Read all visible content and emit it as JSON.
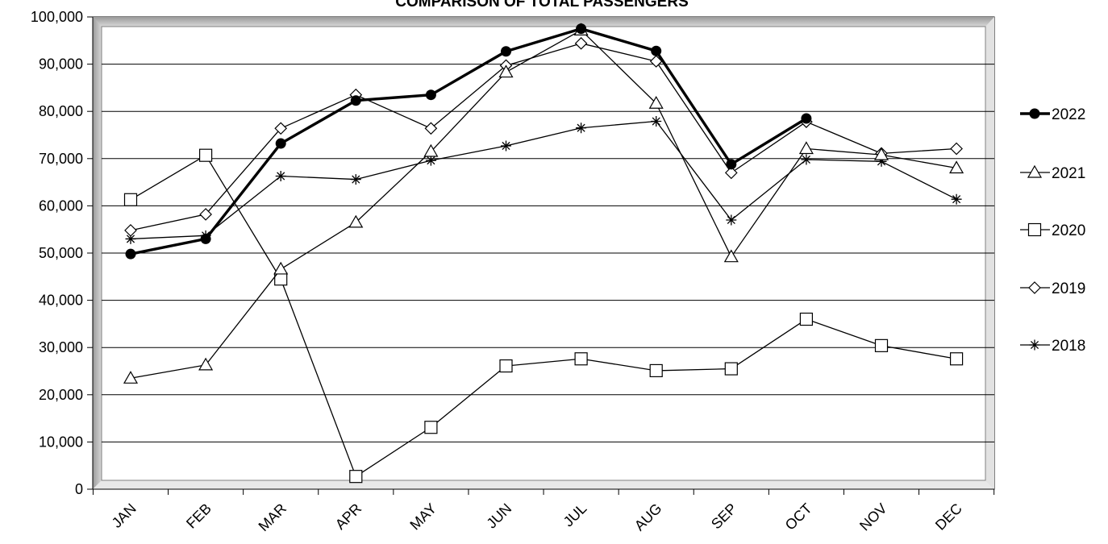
{
  "chart_data": {
    "type": "line",
    "title": "COMPARISON OF TOTAL PASSENGERS",
    "xlabel": "",
    "ylabel": "",
    "categories": [
      "JAN",
      "FEB",
      "MAR",
      "APR",
      "MAY",
      "JUN",
      "JUL",
      "AUG",
      "SEP",
      "OCT",
      "NOV",
      "DEC"
    ],
    "ylim": [
      0,
      100000
    ],
    "yticks": [
      0,
      10000,
      20000,
      30000,
      40000,
      50000,
      60000,
      70000,
      80000,
      90000,
      100000
    ],
    "ytick_labels": [
      "0",
      "10,000",
      "20,000",
      "30,000",
      "40,000",
      "50,000",
      "60,000",
      "70,000",
      "80,000",
      "90,000",
      "100,000"
    ],
    "grid": "horizontal",
    "legend_position": "right",
    "series": [
      {
        "name": "2022",
        "marker": "filled-circle",
        "color": "#000000",
        "bold": true,
        "values": [
          49800,
          53000,
          73200,
          82300,
          83500,
          92700,
          97500,
          92800,
          68800,
          78500,
          null,
          null
        ]
      },
      {
        "name": "2021",
        "marker": "triangle",
        "color": "#000000",
        "bold": false,
        "values": [
          23500,
          26300,
          46600,
          56500,
          71500,
          88300,
          97200,
          81700,
          49200,
          72100,
          70800,
          68000
        ]
      },
      {
        "name": "2020",
        "marker": "square",
        "color": "#000000",
        "bold": false,
        "values": [
          61300,
          70700,
          44500,
          2700,
          13100,
          26100,
          27600,
          25100,
          25500,
          36000,
          30400,
          27600
        ]
      },
      {
        "name": "2019",
        "marker": "diamond",
        "color": "#000000",
        "bold": false,
        "values": [
          54800,
          58200,
          76400,
          83500,
          76400,
          89700,
          94400,
          90600,
          67000,
          77800,
          71100,
          72100
        ]
      },
      {
        "name": "2018",
        "marker": "star",
        "color": "#000000",
        "bold": false,
        "values": [
          53000,
          53700,
          66300,
          65600,
          69600,
          72700,
          76500,
          77900,
          57000,
          69800,
          69400,
          61400
        ]
      }
    ]
  }
}
